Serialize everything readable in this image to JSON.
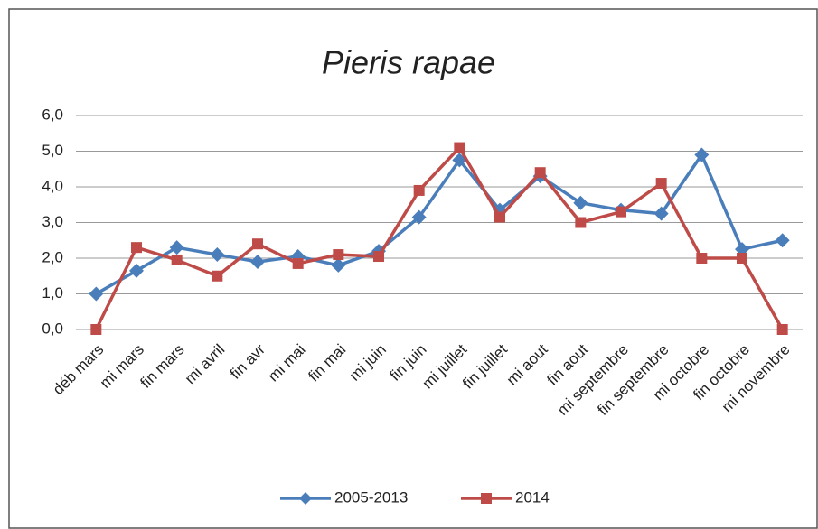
{
  "chart_data": {
    "type": "line",
    "title": "Pieris rapae",
    "categories": [
      "déb mars",
      "mi mars",
      "fin mars",
      "mi avril",
      "fin avr",
      "mi mai",
      "fin mai",
      "mi juin",
      "fin juin",
      "mi juillet",
      "fin juillet",
      "mi aout",
      "fin aout",
      "mi septembre",
      "fin septembre",
      "mi octobre",
      "fin octobre",
      "mi novembre"
    ],
    "series": [
      {
        "name": "2005-2013",
        "color": "#4a7ebb",
        "marker": "diamond",
        "values": [
          1.0,
          1.65,
          2.3,
          2.1,
          1.9,
          2.05,
          1.8,
          2.2,
          3.15,
          4.75,
          3.35,
          4.3,
          3.55,
          3.35,
          3.25,
          4.9,
          2.25,
          2.5
        ]
      },
      {
        "name": "2014",
        "color": "#be4b48",
        "marker": "square",
        "values": [
          0.0,
          2.3,
          1.95,
          1.5,
          2.4,
          1.85,
          2.1,
          2.05,
          3.9,
          5.1,
          3.15,
          4.4,
          3.0,
          3.3,
          4.1,
          2.0,
          2.0,
          0.0
        ]
      }
    ],
    "ylim": [
      0,
      6
    ],
    "yticks": [
      {
        "value": 0,
        "label": "0,0"
      },
      {
        "value": 1,
        "label": "1,0"
      },
      {
        "value": 2,
        "label": "2,0"
      },
      {
        "value": 3,
        "label": "3,0"
      },
      {
        "value": 4,
        "label": "4,0"
      },
      {
        "value": 5,
        "label": "5,0"
      },
      {
        "value": 6,
        "label": "6,0"
      }
    ],
    "grid": true,
    "legend": "bottom"
  }
}
